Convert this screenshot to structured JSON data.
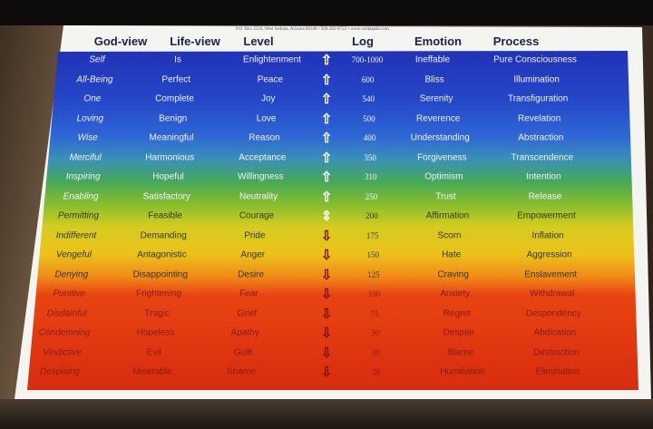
{
  "address_line": "P.O. Box 3516, West Sedona, Arizona 86340 • 928-282-8722 • www.veritaspub.com",
  "headers": [
    "God-view",
    "Life-view",
    "Level",
    "Log",
    "Emotion",
    "Process"
  ],
  "rows": [
    {
      "god_view": "Self",
      "life_view": "Is",
      "level": "Enlightenment",
      "arrow": "up",
      "log": "700-1000",
      "emotion": "Ineffable",
      "process": "Pure Consciousness"
    },
    {
      "god_view": "All-Being",
      "life_view": "Perfect",
      "level": "Peace",
      "arrow": "up",
      "log": "600",
      "emotion": "Bliss",
      "process": "Illumination"
    },
    {
      "god_view": "One",
      "life_view": "Complete",
      "level": "Joy",
      "arrow": "up",
      "log": "540",
      "emotion": "Serenity",
      "process": "Transfiguration"
    },
    {
      "god_view": "Loving",
      "life_view": "Benign",
      "level": "Love",
      "arrow": "up",
      "log": "500",
      "emotion": "Reverence",
      "process": "Revelation"
    },
    {
      "god_view": "Wise",
      "life_view": "Meaningful",
      "level": "Reason",
      "arrow": "up",
      "log": "400",
      "emotion": "Understanding",
      "process": "Abstraction"
    },
    {
      "god_view": "Merciful",
      "life_view": "Harmonious",
      "level": "Acceptance",
      "arrow": "up",
      "log": "350",
      "emotion": "Forgiveness",
      "process": "Transcendence"
    },
    {
      "god_view": "Inspiring",
      "life_view": "Hopeful",
      "level": "Willingness",
      "arrow": "up",
      "log": "310",
      "emotion": "Optimism",
      "process": "Intention"
    },
    {
      "god_view": "Enabling",
      "life_view": "Satisfactory",
      "level": "Neutrality",
      "arrow": "up",
      "log": "250",
      "emotion": "Trust",
      "process": "Release"
    },
    {
      "god_view": "Permitting",
      "life_view": "Feasible",
      "level": "Courage",
      "arrow": "both",
      "log": "200",
      "emotion": "Affirmation",
      "process": "Empowerment"
    },
    {
      "god_view": "Indifferent",
      "life_view": "Demanding",
      "level": "Pride",
      "arrow": "down",
      "log": "175",
      "emotion": "Scorn",
      "process": "Inflation"
    },
    {
      "god_view": "Vengeful",
      "life_view": "Antagonistic",
      "level": "Anger",
      "arrow": "down",
      "log": "150",
      "emotion": "Hate",
      "process": "Aggression"
    },
    {
      "god_view": "Denying",
      "life_view": "Disappointing",
      "level": "Desire",
      "arrow": "down",
      "log": "125",
      "emotion": "Craving",
      "process": "Enslavement"
    },
    {
      "god_view": "Punitive",
      "life_view": "Frightening",
      "level": "Fear",
      "arrow": "down",
      "log": "100",
      "emotion": "Anxiety",
      "process": "Withdrawal"
    },
    {
      "god_view": "Disdainful",
      "life_view": "Tragic",
      "level": "Grief",
      "arrow": "down",
      "log": "75",
      "emotion": "Regret",
      "process": "Despondency"
    },
    {
      "god_view": "Condemning",
      "life_view": "Hopeless",
      "level": "Apathy",
      "arrow": "down",
      "log": "50",
      "emotion": "Despair",
      "process": "Abdication"
    },
    {
      "god_view": "Vindictive",
      "life_view": "Evil",
      "level": "Guilt",
      "arrow": "down",
      "log": "30",
      "emotion": "Blame",
      "process": "Destruction"
    },
    {
      "god_view": "Despising",
      "life_view": "Miserable",
      "level": "Shame",
      "arrow": "down",
      "log": "20",
      "emotion": "Humiliation",
      "process": "Elimination"
    }
  ],
  "colors": {
    "light_text": "#f2f2ff",
    "dark_text": "#2f3a10",
    "red_text": "#8a1a10"
  }
}
